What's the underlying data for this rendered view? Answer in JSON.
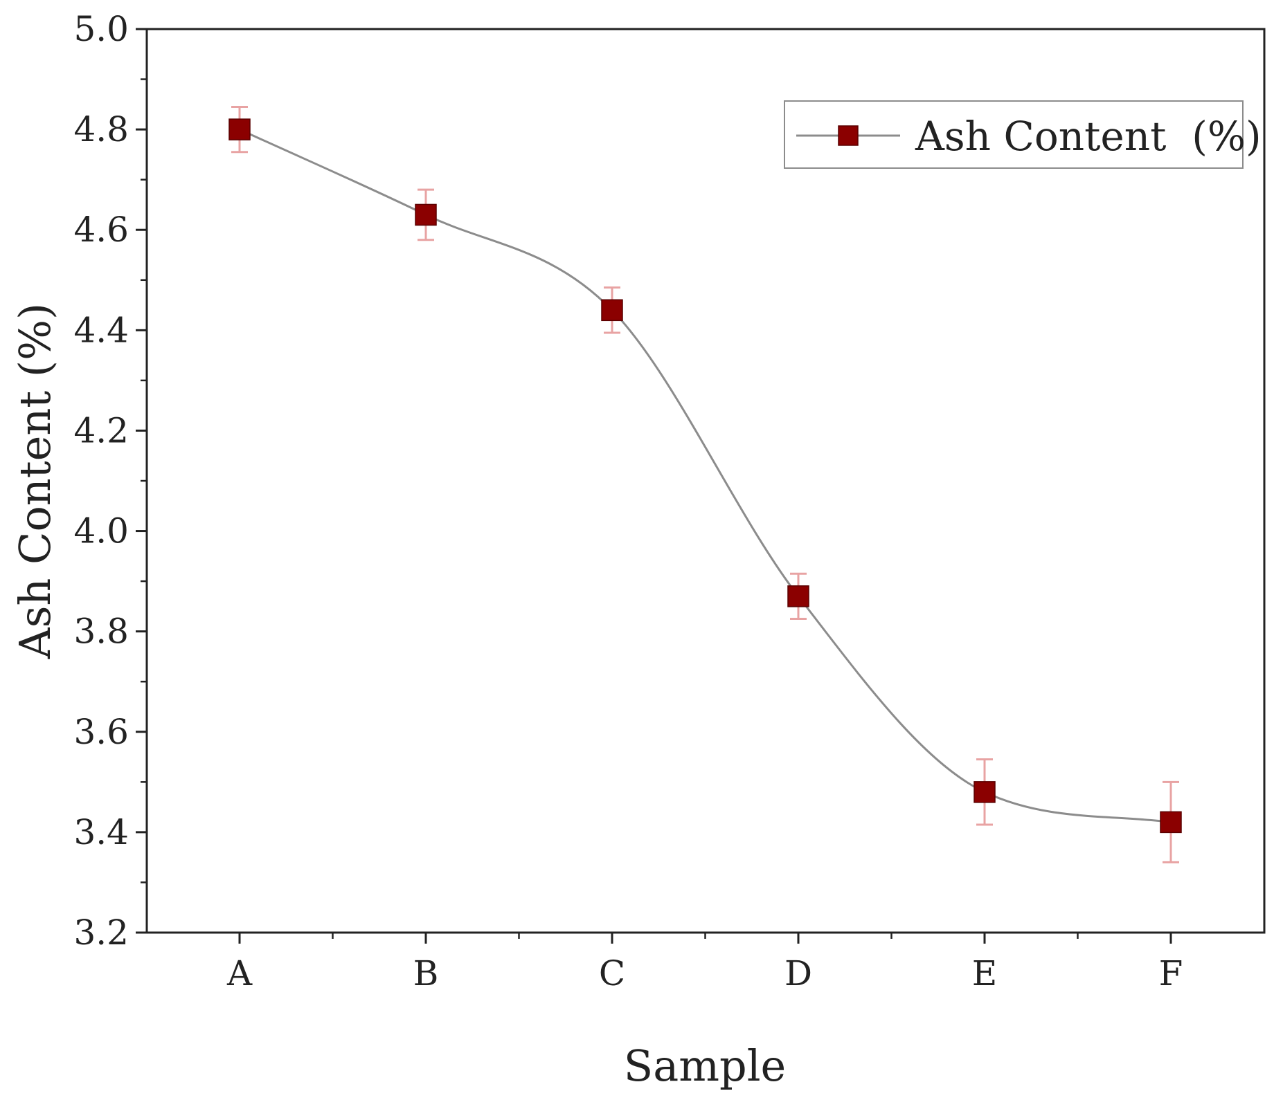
{
  "chart_data": {
    "type": "line",
    "categories": [
      "A",
      "B",
      "C",
      "D",
      "E",
      "F"
    ],
    "series": [
      {
        "name": "Ash Content  (%)",
        "values": [
          4.8,
          4.63,
          4.44,
          3.87,
          3.48,
          3.42
        ],
        "error": [
          0.045,
          0.05,
          0.045,
          0.045,
          0.065,
          0.08
        ]
      }
    ],
    "xlabel": "Sample",
    "ylabel": "Ash Content  (%)",
    "ylim": [
      3.2,
      5.0
    ],
    "yticks": [
      "3.2",
      "3.4",
      "3.6",
      "3.8",
      "4.0",
      "4.2",
      "4.4",
      "4.6",
      "4.8",
      "5.0"
    ],
    "grid": false,
    "legend_position": "top-right",
    "colors": {
      "marker": "#8b0000",
      "line": "#8c8c8c",
      "error_bar": "#e8a3a3",
      "axis": "#222222"
    }
  }
}
